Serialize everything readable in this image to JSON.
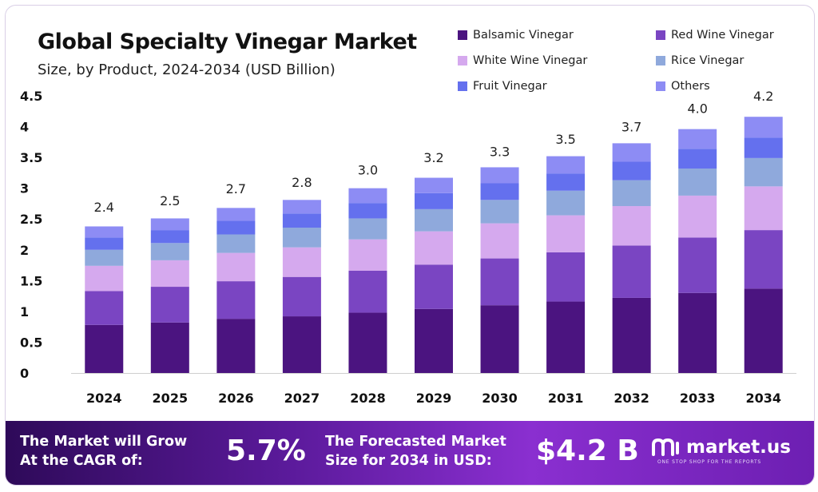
{
  "chart_data": {
    "type": "bar",
    "stacked": true,
    "title": "Global Specialty Vinegar Market",
    "subtitle": "Size, by Product, 2024-2034 (USD Billion)",
    "categories": [
      "2024",
      "2025",
      "2026",
      "2027",
      "2028",
      "2029",
      "2030",
      "2031",
      "2032",
      "2033",
      "2034"
    ],
    "totals": [
      2.4,
      2.5,
      2.7,
      2.8,
      3.0,
      3.2,
      3.3,
      3.5,
      3.7,
      4.0,
      4.2
    ],
    "total_labels": [
      "2.4",
      "2.5",
      "2.7",
      "2.8",
      "3.0",
      "3.2",
      "3.3",
      "3.5",
      "3.7",
      "4.0",
      "4.2"
    ],
    "series": [
      {
        "name": "Balsamic Vinegar",
        "color": "#4b1480",
        "values": [
          0.78,
          0.82,
          0.88,
          0.92,
          0.98,
          1.04,
          1.1,
          1.16,
          1.22,
          1.3,
          1.37
        ]
      },
      {
        "name": "Red Wine Vinegar",
        "color": "#7a45c2",
        "values": [
          0.55,
          0.58,
          0.61,
          0.64,
          0.68,
          0.72,
          0.76,
          0.8,
          0.85,
          0.9,
          0.95
        ]
      },
      {
        "name": "White Wine Vinegar",
        "color": "#d5a9ee",
        "values": [
          0.41,
          0.43,
          0.46,
          0.48,
          0.51,
          0.54,
          0.57,
          0.6,
          0.64,
          0.68,
          0.71
        ]
      },
      {
        "name": "Rice Vinegar",
        "color": "#8fa9dc",
        "values": [
          0.26,
          0.28,
          0.3,
          0.32,
          0.34,
          0.36,
          0.38,
          0.4,
          0.42,
          0.44,
          0.46
        ]
      },
      {
        "name": "Fruit Vinegar",
        "color": "#6470ee",
        "values": [
          0.2,
          0.21,
          0.22,
          0.23,
          0.25,
          0.26,
          0.27,
          0.28,
          0.3,
          0.32,
          0.33
        ]
      },
      {
        "name": "Others",
        "color": "#8d8cf4",
        "values": [
          0.18,
          0.19,
          0.21,
          0.22,
          0.24,
          0.25,
          0.26,
          0.28,
          0.3,
          0.32,
          0.34
        ]
      }
    ],
    "yticks": [
      "0",
      "0.5",
      "1",
      "1.5",
      "2",
      "2.5",
      "3",
      "3.5",
      "4",
      "4.5"
    ],
    "ylim": [
      0,
      4.5
    ],
    "xlabel": "",
    "ylabel": "",
    "grid": false,
    "legend_placement": "top-right"
  },
  "footer": {
    "cagr_label_line1": "The Market will Grow",
    "cagr_label_line2": "At the CAGR of:",
    "cagr_value": "5.7%",
    "forecast_label_line1": "The Forecasted Market",
    "forecast_label_line2": "Size for 2034 in USD:",
    "forecast_value": "$4.2 B",
    "brand_name": "market.us",
    "brand_tagline": "ONE STOP SHOP FOR THE REPORTS"
  },
  "colors": {
    "footer_start": "#2e0a59",
    "footer_end": "#8a2fd0"
  }
}
